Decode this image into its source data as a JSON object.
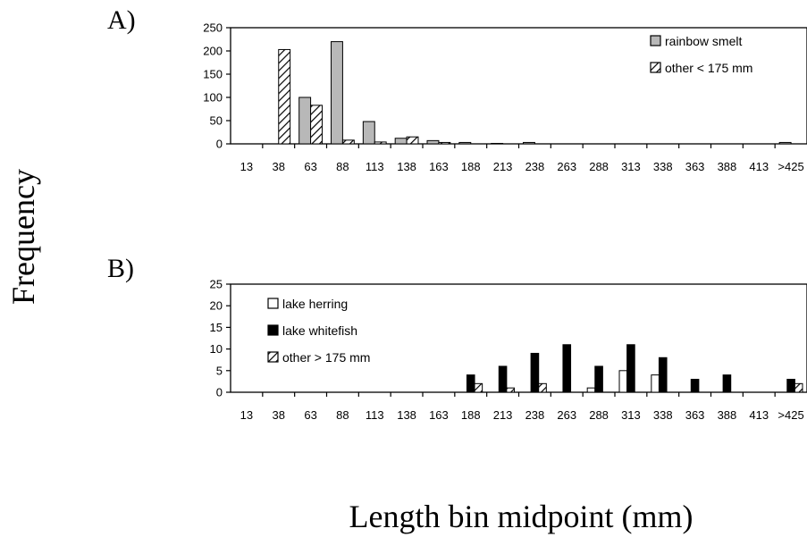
{
  "figure": {
    "ylabel": "Frequency",
    "xlabel": "Length bin midpoint (mm)"
  },
  "chart_data": [
    {
      "type": "bar",
      "panel_label": "A)",
      "categories": [
        "13",
        "38",
        "63",
        "88",
        "113",
        "138",
        "163",
        "188",
        "213",
        "238",
        "263",
        "288",
        "313",
        "338",
        "363",
        "388",
        "413",
        ">425"
      ],
      "ylim": [
        0,
        250
      ],
      "yticks": [
        0,
        50,
        100,
        150,
        200,
        250
      ],
      "legend_position": "top-right",
      "series": [
        {
          "name": "rainbow smelt",
          "pattern": "gray",
          "values": [
            0,
            0,
            100,
            220,
            48,
            12,
            7,
            3,
            1,
            3,
            0,
            0,
            0,
            0,
            0,
            0,
            0,
            3
          ]
        },
        {
          "name": "other < 175 mm",
          "pattern": "hatch",
          "values": [
            0,
            203,
            83,
            8,
            4,
            15,
            3,
            0,
            0,
            0,
            0,
            0,
            0,
            0,
            0,
            0,
            0,
            0
          ]
        }
      ]
    },
    {
      "type": "bar",
      "panel_label": "B)",
      "categories": [
        "13",
        "38",
        "63",
        "88",
        "113",
        "138",
        "163",
        "188",
        "213",
        "238",
        "263",
        "288",
        "313",
        "338",
        "363",
        "388",
        "413",
        ">425"
      ],
      "ylim": [
        0,
        25
      ],
      "yticks": [
        0,
        5,
        10,
        15,
        20,
        25
      ],
      "legend_position": "top-left",
      "series": [
        {
          "name": "lake herring",
          "pattern": "white",
          "values": [
            0,
            0,
            0,
            0,
            0,
            0,
            0,
            0,
            0,
            0,
            0,
            1,
            5,
            4,
            0,
            0,
            0,
            0
          ]
        },
        {
          "name": "lake whitefish",
          "pattern": "black",
          "values": [
            0,
            0,
            0,
            0,
            0,
            0,
            0,
            4,
            6,
            9,
            11,
            6,
            11,
            8,
            3,
            4,
            0,
            3
          ]
        },
        {
          "name": "other > 175 mm",
          "pattern": "hatch",
          "values": [
            0,
            0,
            0,
            0,
            0,
            0,
            0,
            2,
            1,
            2,
            0,
            0,
            0,
            0,
            0,
            0,
            0,
            2
          ]
        }
      ]
    }
  ]
}
